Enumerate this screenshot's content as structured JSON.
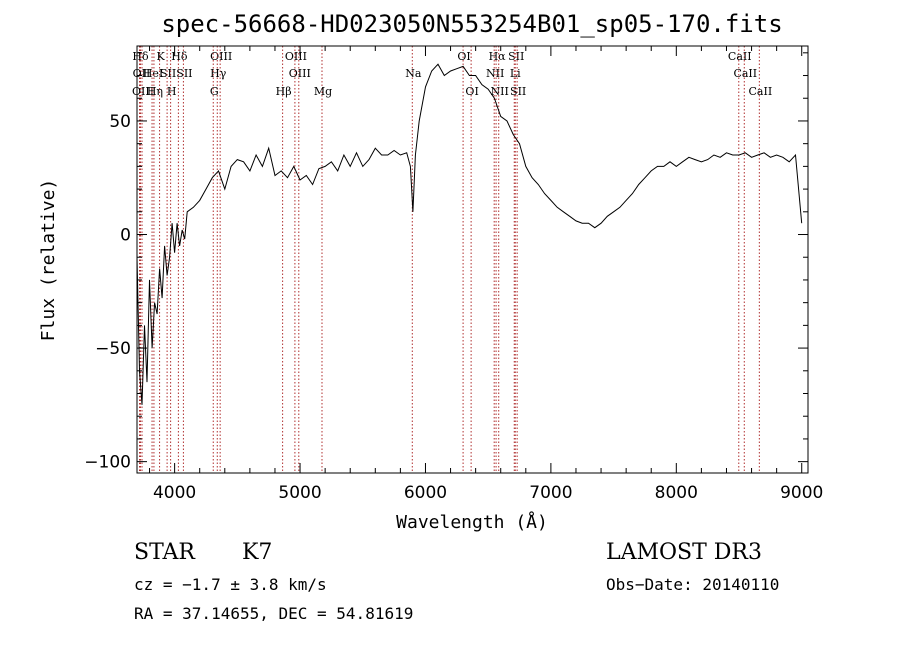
{
  "chart_data": {
    "type": "line",
    "title": "spec-56668-HD023050N553254B01_sp05-170.fits",
    "xlabel": "Wavelength (Å)",
    "ylabel": "Flux (relative)",
    "xlim": [
      3700,
      9050
    ],
    "ylim": [
      -105,
      83
    ],
    "xticks": [
      4000,
      5000,
      6000,
      7000,
      8000,
      9000
    ],
    "yticks": [
      -100,
      -50,
      0,
      50
    ],
    "grid": false,
    "series": [
      {
        "x": [
          3700,
          3720,
          3740,
          3760,
          3780,
          3800,
          3820,
          3840,
          3860,
          3880,
          3900,
          3920,
          3940,
          3960,
          3980,
          4000,
          4020,
          4040,
          4060,
          4080,
          4100,
          4150,
          4200,
          4250,
          4300,
          4350,
          4400,
          4450,
          4500,
          4550,
          4600,
          4650,
          4700,
          4750,
          4800,
          4850,
          4900,
          4950,
          5000,
          5050,
          5100,
          5150,
          5200,
          5250,
          5300,
          5350,
          5400,
          5450,
          5500,
          5550,
          5600,
          5650,
          5700,
          5750,
          5800,
          5850,
          5880,
          5900,
          5920,
          5950,
          6000,
          6050,
          6100,
          6150,
          6200,
          6250,
          6300,
          6350,
          6400,
          6450,
          6500,
          6550,
          6600,
          6650,
          6700,
          6750,
          6800,
          6850,
          6900,
          6950,
          7000,
          7050,
          7100,
          7150,
          7200,
          7250,
          7300,
          7350,
          7400,
          7450,
          7500,
          7550,
          7600,
          7650,
          7700,
          7750,
          7800,
          7850,
          7900,
          7950,
          8000,
          8050,
          8100,
          8150,
          8200,
          8250,
          8300,
          8350,
          8400,
          8450,
          8500,
          8550,
          8600,
          8650,
          8700,
          8750,
          8800,
          8850,
          8900,
          8950,
          9000
        ],
        "y": [
          -10,
          -60,
          -75,
          -40,
          -65,
          -20,
          -50,
          -30,
          -35,
          -15,
          -28,
          -5,
          -18,
          -10,
          5,
          -8,
          5,
          -5,
          2,
          -2,
          10,
          12,
          15,
          20,
          25,
          28,
          20,
          30,
          33,
          32,
          28,
          35,
          30,
          38,
          26,
          28,
          25,
          30,
          24,
          26,
          22,
          29,
          30,
          32,
          28,
          35,
          30,
          36,
          30,
          33,
          38,
          35,
          35,
          37,
          35,
          36,
          30,
          10,
          35,
          50,
          65,
          72,
          75,
          70,
          72,
          73,
          74,
          70,
          70,
          66,
          64,
          60,
          52,
          50,
          44,
          40,
          30,
          25,
          22,
          18,
          15,
          12,
          10,
          8,
          6,
          5,
          5,
          3,
          5,
          8,
          10,
          12,
          15,
          18,
          22,
          25,
          28,
          30,
          30,
          32,
          30,
          32,
          34,
          33,
          32,
          33,
          35,
          34,
          36,
          35,
          35,
          36,
          34,
          35,
          36,
          34,
          35,
          34,
          32,
          35,
          5
        ]
      }
    ],
    "lines": [
      {
        "label": "Hδ",
        "x": 3720,
        "row": 0
      },
      {
        "label": "OII",
        "x": 3728,
        "row": 1
      },
      {
        "label": "OIII",
        "x": 3740,
        "row": 2
      },
      {
        "label": "HeI",
        "x": 3820,
        "row": 1
      },
      {
        "label": "Hη",
        "x": 3835,
        "row": 2
      },
      {
        "label": "K",
        "x": 3880,
        "row": 0
      },
      {
        "label": "SII",
        "x": 3940,
        "row": 1
      },
      {
        "label": "H",
        "x": 3968,
        "row": 2
      },
      {
        "label": "Hδ",
        "x": 4030,
        "row": 0
      },
      {
        "label": "SII",
        "x": 4070,
        "row": 1
      },
      {
        "label": "OIII",
        "x": 4363,
        "row": 0
      },
      {
        "label": "Hγ",
        "x": 4340,
        "row": 1
      },
      {
        "label": "G",
        "x": 4308,
        "row": 2
      },
      {
        "label": "Hβ",
        "x": 4861,
        "row": 2
      },
      {
        "label": "OIII",
        "x": 4959,
        "row": 0
      },
      {
        "label": "OIII",
        "x": 4990,
        "row": 1
      },
      {
        "label": "Mg",
        "x": 5175,
        "row": 2
      },
      {
        "label": "Na",
        "x": 5895,
        "row": 1
      },
      {
        "label": "OI",
        "x": 6300,
        "row": 0
      },
      {
        "label": "OI",
        "x": 6364,
        "row": 2
      },
      {
        "label": "Hα",
        "x": 6563,
        "row": 0
      },
      {
        "label": "NII",
        "x": 6548,
        "row": 1
      },
      {
        "label": "NII",
        "x": 6584,
        "row": 2
      },
      {
        "label": "SII",
        "x": 6716,
        "row": 0
      },
      {
        "label": "Li",
        "x": 6708,
        "row": 1
      },
      {
        "label": "SII",
        "x": 6731,
        "row": 2
      },
      {
        "label": "CaII",
        "x": 8498,
        "row": 0
      },
      {
        "label": "CaII",
        "x": 8542,
        "row": 1
      },
      {
        "label": "CaII",
        "x": 8662,
        "row": 2
      }
    ]
  },
  "info": {
    "object_type": "STAR",
    "subclass": "K7",
    "survey": "LAMOST DR3",
    "cz": "cz = −1.7 ± 3.8 km/s",
    "obs_date": "Obs−Date: 20140110",
    "coords": "RA =  37.14655, DEC =  54.81619"
  }
}
